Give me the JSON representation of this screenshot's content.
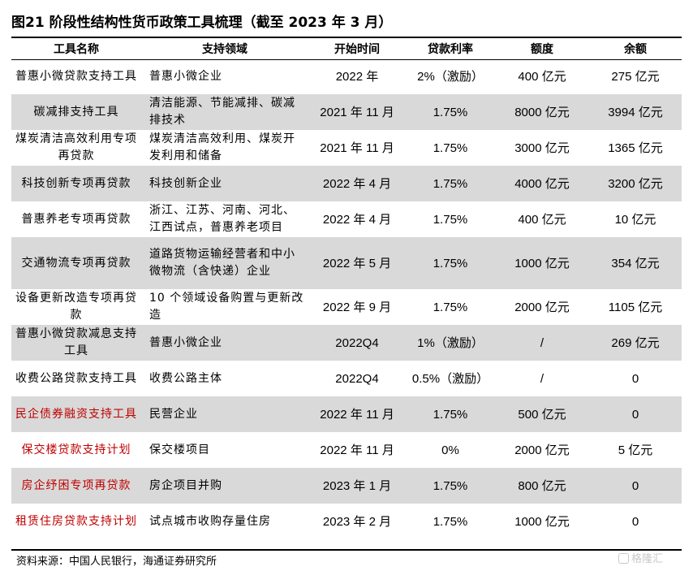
{
  "title": "图21 阶段性结构性货币政策工具梳理（截至 2023 年 3 月）",
  "headers": [
    "工具名称",
    "支持领域",
    "开始时间",
    "贷款利率",
    "额度",
    "余额"
  ],
  "rows": [
    {
      "name": "普惠小微贷款支持工具",
      "field": "普惠小微企业",
      "start": "2022 年",
      "rate": "2%（激励）",
      "quota": "400 亿元",
      "balance": "275 亿元"
    },
    {
      "name": "碳减排支持工具",
      "field": "清洁能源、节能减排、碳减排技术",
      "start": "2021 年 11 月",
      "rate": "1.75%",
      "quota": "8000 亿元",
      "balance": "3994 亿元"
    },
    {
      "name": "煤炭清洁高效利用专项再贷款",
      "field": "煤炭清洁高效利用、煤炭开发利用和储备",
      "start": "2021 年 11 月",
      "rate": "1.75%",
      "quota": "3000 亿元",
      "balance": "1365 亿元"
    },
    {
      "name": "科技创新专项再贷款",
      "field": "科技创新企业",
      "start": "2022 年 4 月",
      "rate": "1.75%",
      "quota": "4000 亿元",
      "balance": "3200 亿元"
    },
    {
      "name": "普惠养老专项再贷款",
      "field": "浙江、江苏、河南、河北、江西试点，普惠养老项目",
      "start": "2022 年 4 月",
      "rate": "1.75%",
      "quota": "400 亿元",
      "balance": "10 亿元"
    },
    {
      "name": "交通物流专项再贷款",
      "field": "道路货物运输经营者和中小微物流（含快递）企业",
      "start": "2022 年 5 月",
      "rate": "1.75%",
      "quota": "1000 亿元",
      "balance": "354 亿元"
    },
    {
      "name": "设备更新改造专项再贷款",
      "field": "10 个领域设备购置与更新改造",
      "start": "2022 年 9 月",
      "rate": "1.75%",
      "quota": "2000 亿元",
      "balance": "1105 亿元"
    },
    {
      "name": "普惠小微贷款减息支持工具",
      "field": "普惠小微企业",
      "start": "2022Q4",
      "rate": "1%（激励）",
      "quota": "/",
      "balance": "269 亿元"
    },
    {
      "name": "收费公路贷款支持工具",
      "field": "收费公路主体",
      "start": "2022Q4",
      "rate": "0.5%（激励）",
      "quota": "/",
      "balance": "0"
    },
    {
      "name": "民企债券融资支持工具",
      "field": "民营企业",
      "start": "2022 年 11 月",
      "rate": "1.75%",
      "quota": "500 亿元",
      "balance": "0"
    },
    {
      "name": "保交楼贷款支持计划",
      "field": "保交楼项目",
      "start": "2022 年 11 月",
      "rate": "0%",
      "quota": "2000 亿元",
      "balance": "5 亿元"
    },
    {
      "name": "房企纾困专项再贷款",
      "field": "房企项目并购",
      "start": "2023 年 1 月",
      "rate": "1.75%",
      "quota": "800 亿元",
      "balance": "0"
    },
    {
      "name": "租赁住房贷款支持计划",
      "field": "试点城市收购存量住房",
      "start": "2023 年 2 月",
      "rate": "1.75%",
      "quota": "1000 亿元",
      "balance": "0"
    }
  ],
  "source": "资料来源：中国人民银行，海通证券研究所",
  "watermark": "格隆汇",
  "colors": {
    "shade": "#d9d9d9",
    "red_text": "#c00000",
    "rule": "#000000"
  }
}
